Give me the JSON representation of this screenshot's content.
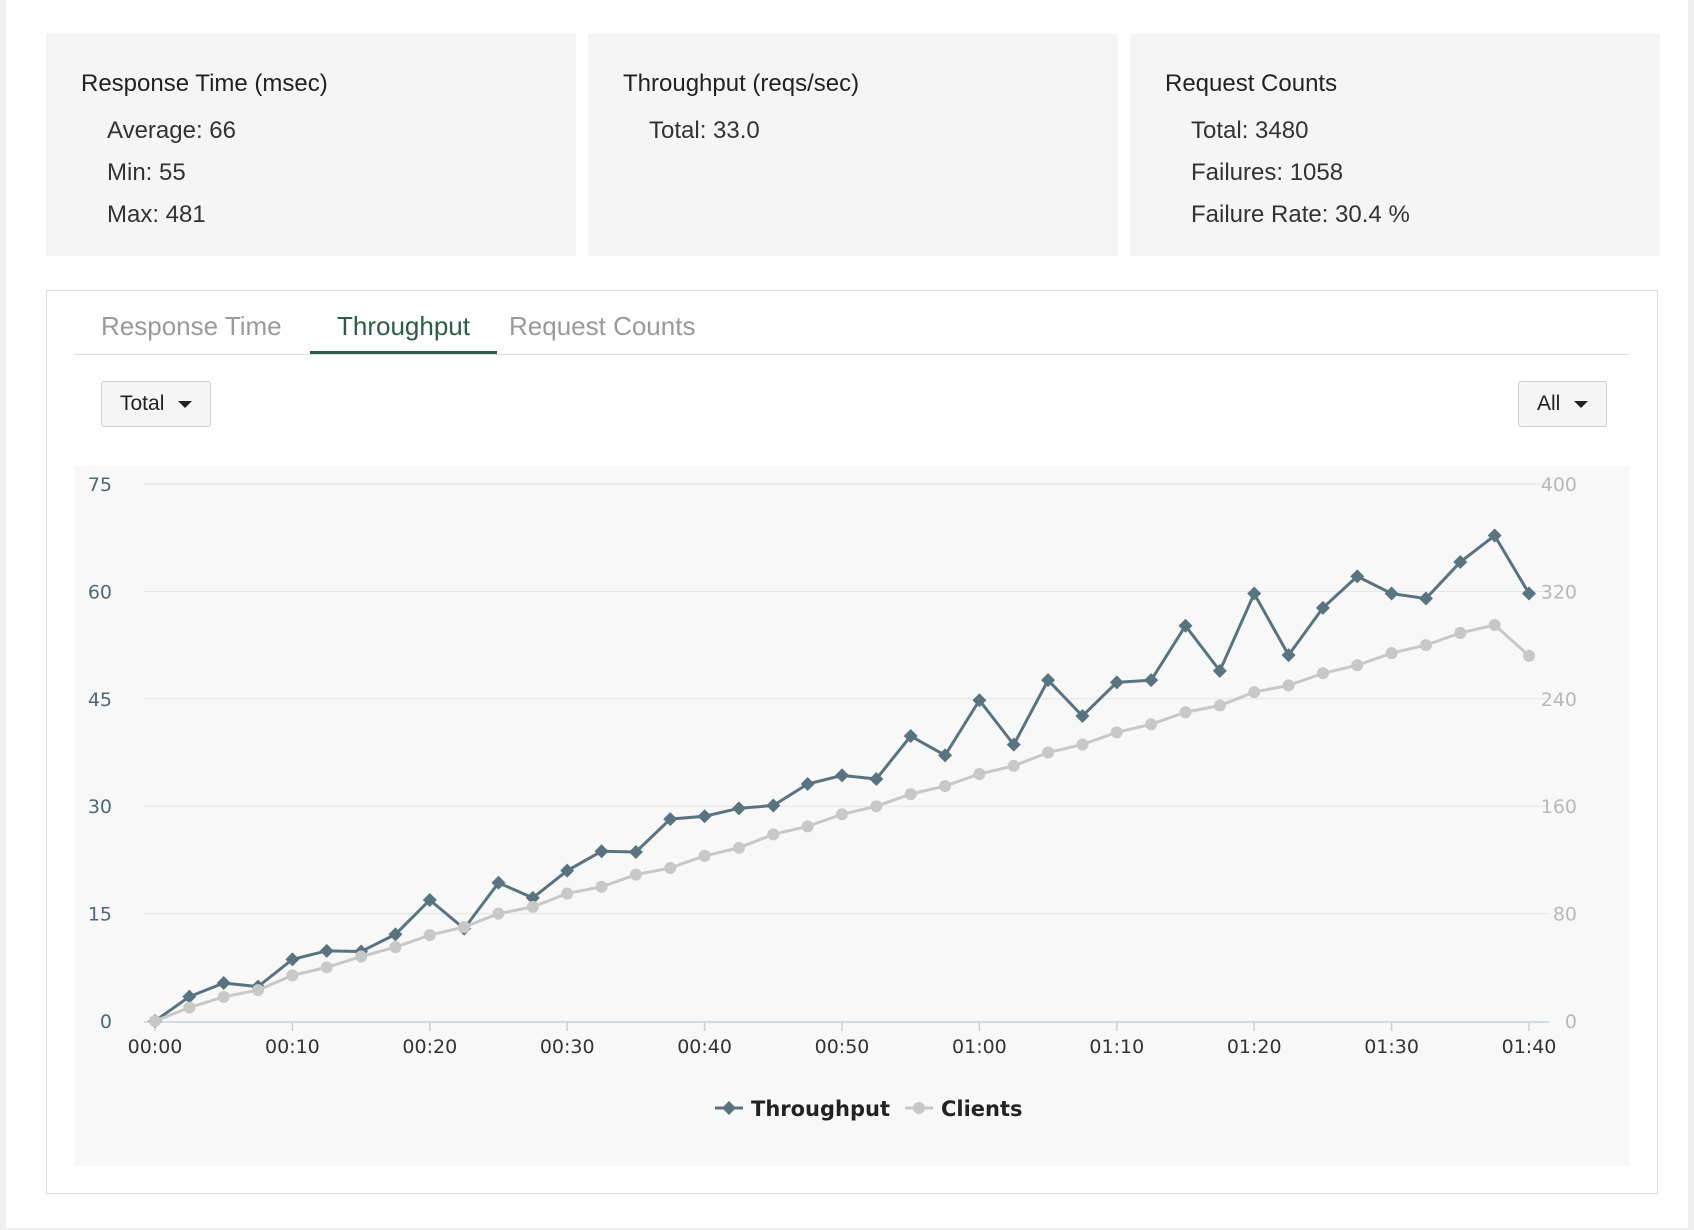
{
  "cards": [
    {
      "title": "Response Time (msec)",
      "lines": [
        "Average: 66",
        "Min: 55",
        "Max: 481"
      ]
    },
    {
      "title": "Throughput (reqs/sec)",
      "lines": [
        "Total: 33.0"
      ]
    },
    {
      "title": "Request Counts",
      "lines": [
        "Total: 3480",
        "Failures: 1058",
        "Failure Rate: 30.4 %"
      ]
    }
  ],
  "tabs": [
    {
      "label": "Response Time",
      "active": false
    },
    {
      "label": "Throughput",
      "active": true
    },
    {
      "label": "Request Counts",
      "active": false
    }
  ],
  "filters": {
    "left_dropdown": "Total",
    "right_dropdown": "All"
  },
  "colors": {
    "active_tab": "#2f5b46",
    "throughput_series": "#5a7381",
    "clients_series": "#c8c8c8",
    "left_axis_text": "#4f6877",
    "right_axis_text": "#b8b8b8"
  },
  "chart_data": {
    "type": "line",
    "title": "",
    "x_tick_labels": [
      "00:00",
      "00:10",
      "00:20",
      "00:30",
      "00:40",
      "00:50",
      "01:00",
      "01:10",
      "01:20",
      "01:30",
      "01:40"
    ],
    "xlim_seconds": [
      0,
      100
    ],
    "y_left": {
      "ticks": [
        0,
        15,
        30,
        45,
        60,
        75
      ],
      "ylim": [
        0,
        75
      ]
    },
    "y_right": {
      "ticks": [
        0,
        80,
        160,
        240,
        320,
        400
      ],
      "ylim": [
        0,
        400
      ]
    },
    "grid": true,
    "legend_position": "bottom-center",
    "x_seconds": [
      0,
      2.5,
      5,
      7.5,
      10,
      12.5,
      15,
      17.5,
      20,
      22.5,
      25,
      27.5,
      30,
      32.5,
      35,
      37.5,
      40,
      42.5,
      45,
      47.5,
      50,
      52.5,
      55,
      57.5,
      60,
      62.5,
      65,
      67.5,
      70,
      72.5,
      75,
      77.5,
      80,
      82.5,
      85,
      87.5,
      90,
      92.5,
      95,
      97.5,
      100
    ],
    "series": [
      {
        "name": "Throughput",
        "axis": "left",
        "marker": "diamond",
        "values": [
          0,
          3.4,
          5.3,
          4.8,
          8.6,
          9.8,
          9.7,
          12.1,
          16.9,
          12.9,
          19.3,
          17.2,
          21.0,
          23.7,
          23.6,
          28.2,
          28.6,
          29.7,
          30.1,
          33.1,
          34.3,
          33.8,
          39.8,
          37.1,
          44.8,
          38.6,
          47.6,
          42.6,
          47.3,
          47.6,
          55.2,
          48.9,
          59.7,
          51.1,
          57.7,
          62.1,
          59.7,
          59.0,
          64.1,
          67.8,
          59.7
        ]
      },
      {
        "name": "Clients",
        "axis": "right",
        "marker": "circle",
        "values": [
          0,
          10,
          18,
          23,
          34,
          40,
          48,
          55,
          64,
          70,
          80,
          85,
          95,
          100,
          109,
          114,
          123,
          129,
          139,
          145,
          154,
          160,
          169,
          175,
          184,
          190,
          200,
          206,
          215,
          221,
          230,
          235,
          245,
          250,
          259,
          265,
          274,
          280,
          289,
          295,
          272
        ]
      }
    ]
  }
}
